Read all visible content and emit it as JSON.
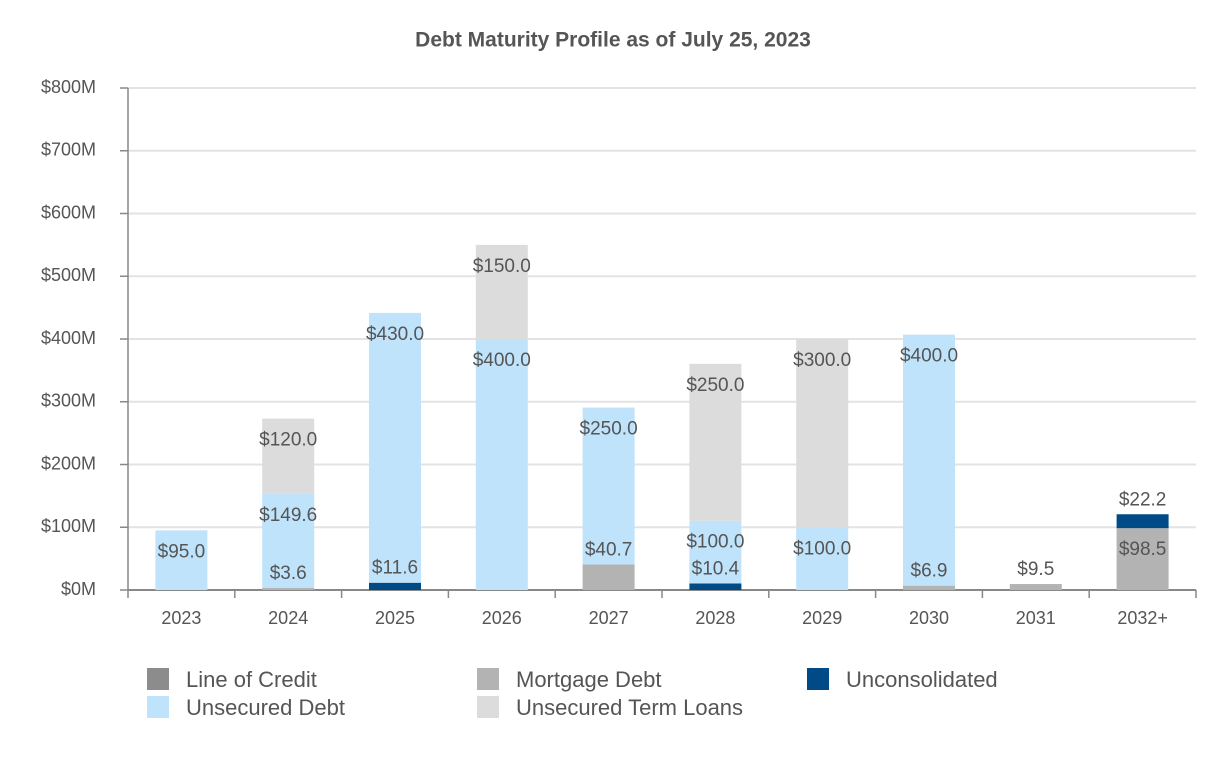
{
  "chart_data": {
    "type": "bar",
    "stacked": true,
    "title": "Debt Maturity Profile as of July 25, 2023",
    "categories": [
      "2023",
      "2024",
      "2025",
      "2026",
      "2027",
      "2028",
      "2029",
      "2030",
      "2031",
      "2032+"
    ],
    "series": [
      {
        "name": "Line of Credit",
        "color": "#8c8c8c",
        "values": [
          null,
          null,
          null,
          null,
          null,
          null,
          null,
          null,
          null,
          null
        ]
      },
      {
        "name": "Mortgage Debt",
        "color": "#b3b3b3",
        "values": [
          null,
          3.6,
          null,
          null,
          40.7,
          null,
          null,
          6.9,
          9.5,
          98.5
        ],
        "value_labels": [
          null,
          "$3.6",
          null,
          null,
          "$40.7",
          null,
          null,
          "$6.9",
          "$9.5",
          "$98.5"
        ]
      },
      {
        "name": "Unconsolidated",
        "color": "#004b87",
        "values": [
          null,
          null,
          11.6,
          null,
          null,
          10.4,
          null,
          null,
          null,
          22.2
        ],
        "value_labels": [
          null,
          null,
          "$11.6",
          null,
          null,
          "$10.4",
          null,
          null,
          null,
          "$22.2"
        ]
      },
      {
        "name": "Unsecured Debt",
        "color": "#bfe3fb",
        "values": [
          95.0,
          149.6,
          430.0,
          400.0,
          250.0,
          100.0,
          100.0,
          400.0,
          null,
          null
        ],
        "value_labels": [
          "$95.0",
          "$149.6",
          "$430.0",
          "$400.0",
          "$250.0",
          "$100.0",
          "$100.0",
          "$400.0",
          null,
          null
        ]
      },
      {
        "name": "Unsecured Term Loans",
        "color": "#dcdcdc",
        "values": [
          null,
          120.0,
          null,
          150.0,
          null,
          250.0,
          300.0,
          null,
          null,
          null
        ],
        "value_labels": [
          null,
          "$120.0",
          null,
          "$150.0",
          null,
          "$250.0",
          "$300.0",
          null,
          null,
          null
        ]
      }
    ],
    "ylim": [
      0,
      800
    ],
    "yticks": [
      {
        "value": 0,
        "label": "$0M"
      },
      {
        "value": 100,
        "label": "$100M"
      },
      {
        "value": 200,
        "label": "$200M"
      },
      {
        "value": 300,
        "label": "$300M"
      },
      {
        "value": 400,
        "label": "$400M"
      },
      {
        "value": 500,
        "label": "$500M"
      },
      {
        "value": 600,
        "label": "$600M"
      },
      {
        "value": 700,
        "label": "$700M"
      },
      {
        "value": 800,
        "label": "$800M"
      }
    ],
    "grid": true
  }
}
